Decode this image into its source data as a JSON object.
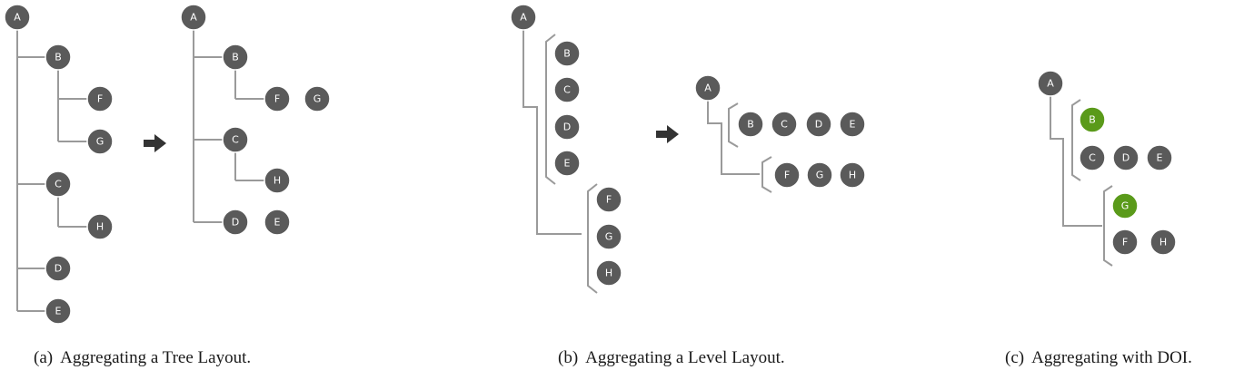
{
  "colors": {
    "node": "#5a5a5a",
    "highlight": "#5a9a1a"
  },
  "panels": {
    "a": {
      "caption_tag": "(a)",
      "caption_text": "Aggregating a Tree Layout.",
      "before": [
        "A",
        "B",
        "F",
        "G",
        "C",
        "H",
        "D",
        "E"
      ],
      "after": [
        "A",
        "B",
        "F",
        "G",
        "C",
        "H",
        "D",
        "E"
      ]
    },
    "b": {
      "caption_tag": "(b)",
      "caption_text": "Aggregating a Level Layout.",
      "before": [
        "A",
        "B",
        "C",
        "D",
        "E",
        "F",
        "G",
        "H"
      ],
      "after": [
        "A",
        "B",
        "C",
        "D",
        "E",
        "F",
        "G",
        "H"
      ]
    },
    "c": {
      "caption_tag": "(c)",
      "caption_text": "Aggregating with DOI.",
      "nodes": [
        "A",
        "B",
        "C",
        "D",
        "E",
        "G",
        "F",
        "H"
      ],
      "highlighted": [
        "B",
        "G"
      ]
    }
  }
}
